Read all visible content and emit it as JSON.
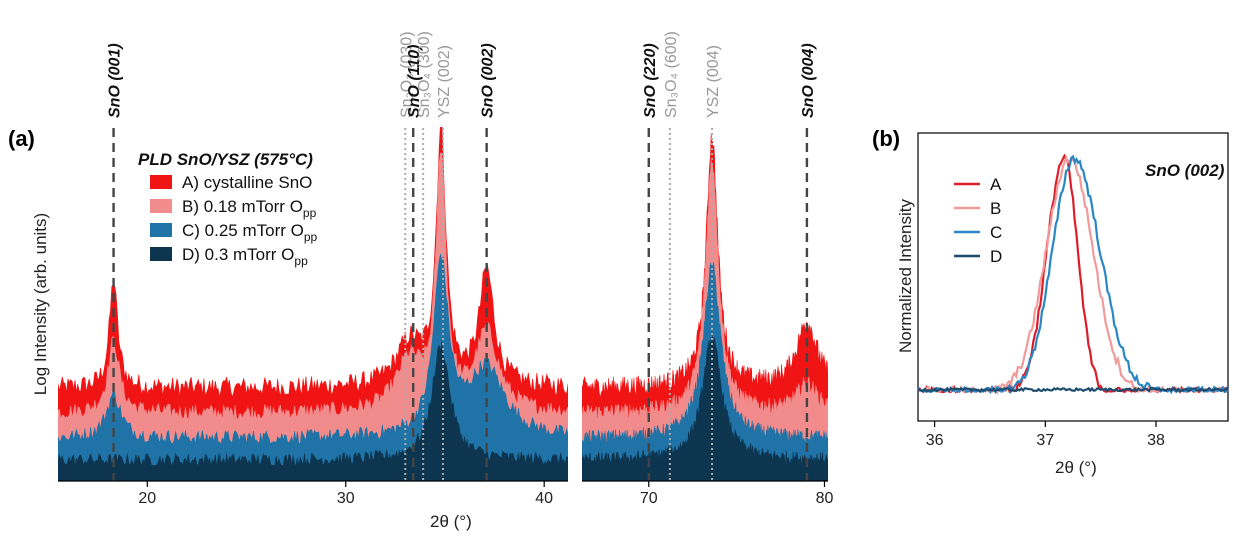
{
  "panel_labels": {
    "a": "(a)",
    "b": "(b)"
  },
  "legend": {
    "title": "PLD SnO/YSZ (575°C)",
    "items": [
      {
        "label": "A) cystalline SnO",
        "sub": "",
        "color": "#f01414"
      },
      {
        "label": "B) 0.18 mTorr O",
        "sub": "pp",
        "color": "#f28c8c"
      },
      {
        "label": "C) 0.25 mTorr O",
        "sub": "pp",
        "color": "#1f73a6"
      },
      {
        "label": "D) 0.3 mTorr O",
        "sub": "pp",
        "color": "#0d3550"
      }
    ]
  },
  "legend_b": {
    "items": [
      "A",
      "B",
      "C",
      "D"
    ],
    "colors": [
      "#dc1e2a",
      "#f09a9a",
      "#2a86c4",
      "#1d4d6e"
    ]
  },
  "chart_data": [
    {
      "type": "area",
      "panel": "(a) left",
      "xlabel": "2θ (°)",
      "ylabel": "Log Intensity (arb. units)",
      "xlim": [
        15.5,
        41.2
      ],
      "xticks": [
        20,
        30,
        40
      ],
      "series": [
        {
          "name": "A) cystalline SnO",
          "baseline": 1.0,
          "noise": 0.28,
          "peaks": [
            [
              18.3,
              1.5,
              0.25
            ],
            [
              33.2,
              0.6,
              0.8
            ],
            [
              34.8,
              3.5,
              0.3
            ],
            [
              37.1,
              1.6,
              0.45
            ]
          ]
        },
        {
          "name": "B) 0.18 mTorr Opp",
          "baseline": 0.65,
          "noise": 0.22,
          "peaks": [
            [
              18.3,
              1.0,
              0.35
            ],
            [
              33.2,
              0.7,
              0.8
            ],
            [
              34.8,
              3.5,
              0.3
            ],
            [
              37.1,
              1.1,
              0.7
            ]
          ]
        },
        {
          "name": "C) 0.25 mTorr Opp",
          "baseline": 0.3,
          "noise": 0.2,
          "peaks": [
            [
              18.3,
              0.6,
              0.45
            ],
            [
              34.8,
              2.4,
              0.45
            ],
            [
              37.1,
              0.95,
              1.1
            ]
          ]
        },
        {
          "name": "D) 0.3 mTorr Opp",
          "baseline": 0.0,
          "noise": 0.18,
          "peaks": [
            [
              34.8,
              1.6,
              0.55
            ]
          ]
        }
      ]
    },
    {
      "type": "area",
      "panel": "(a) right",
      "xlim": [
        66.2,
        80.2
      ],
      "xticks": [
        70,
        80
      ],
      "series": [
        {
          "name": "A) cystalline SnO",
          "baseline": 1.0,
          "noise": 0.28,
          "peaks": [
            [
              73.6,
              3.5,
              0.4
            ],
            [
              79.0,
              0.9,
              0.7
            ]
          ]
        },
        {
          "name": "B) 0.18 mTorr Opp",
          "baseline": 0.65,
          "noise": 0.22,
          "peaks": [
            [
              73.6,
              3.5,
              0.45
            ],
            [
              79.0,
              0.4,
              0.7
            ]
          ]
        },
        {
          "name": "C) 0.25 mTorr Opp",
          "baseline": 0.3,
          "noise": 0.2,
          "peaks": [
            [
              73.6,
              2.4,
              0.6
            ]
          ]
        },
        {
          "name": "D) 0.3 mTorr Opp",
          "baseline": 0.0,
          "noise": 0.18,
          "peaks": [
            [
              73.6,
              1.7,
              0.65
            ]
          ]
        }
      ]
    },
    {
      "type": "line",
      "panel": "(b)",
      "title": "SnO (002)",
      "xlabel": "2θ (°)",
      "ylabel": "Normalized Intensity",
      "xlim": [
        35.85,
        38.65
      ],
      "xticks": [
        36,
        37,
        38
      ],
      "series": [
        {
          "name": "A",
          "center": 37.17,
          "width_l": 0.28,
          "width_r": 0.22
        },
        {
          "name": "B",
          "center": 37.22,
          "width_l": 0.38,
          "width_r": 0.38
        },
        {
          "name": "C",
          "center": 37.26,
          "width_l": 0.35,
          "width_r": 0.42
        },
        {
          "name": "D",
          "flat": true
        }
      ]
    }
  ],
  "reference_lines": [
    {
      "label": "SnO (001)",
      "x": 18.3,
      "panel": "left",
      "style": "dark"
    },
    {
      "label": "Sn₂O₃ (030)",
      "x": 33.0,
      "panel": "left",
      "style": "gray"
    },
    {
      "label": "SnO (110)",
      "x": 33.4,
      "panel": "left",
      "style": "dark"
    },
    {
      "label": "Sn₃O₄ (300)",
      "x": 33.9,
      "panel": "left",
      "style": "gray"
    },
    {
      "label": "YSZ (002)",
      "x": 34.9,
      "panel": "left",
      "style": "gray"
    },
    {
      "label": "SnO (002)",
      "x": 37.1,
      "panel": "left",
      "style": "dark"
    },
    {
      "label": "SnO (220)",
      "x": 70.0,
      "panel": "right",
      "style": "dark"
    },
    {
      "label": "Sn₃O₄ (600)",
      "x": 71.2,
      "panel": "right",
      "style": "gray"
    },
    {
      "label": "YSZ (004)",
      "x": 73.6,
      "panel": "right",
      "style": "gray"
    },
    {
      "label": "SnO (004)",
      "x": 79.0,
      "panel": "right",
      "style": "dark"
    }
  ]
}
